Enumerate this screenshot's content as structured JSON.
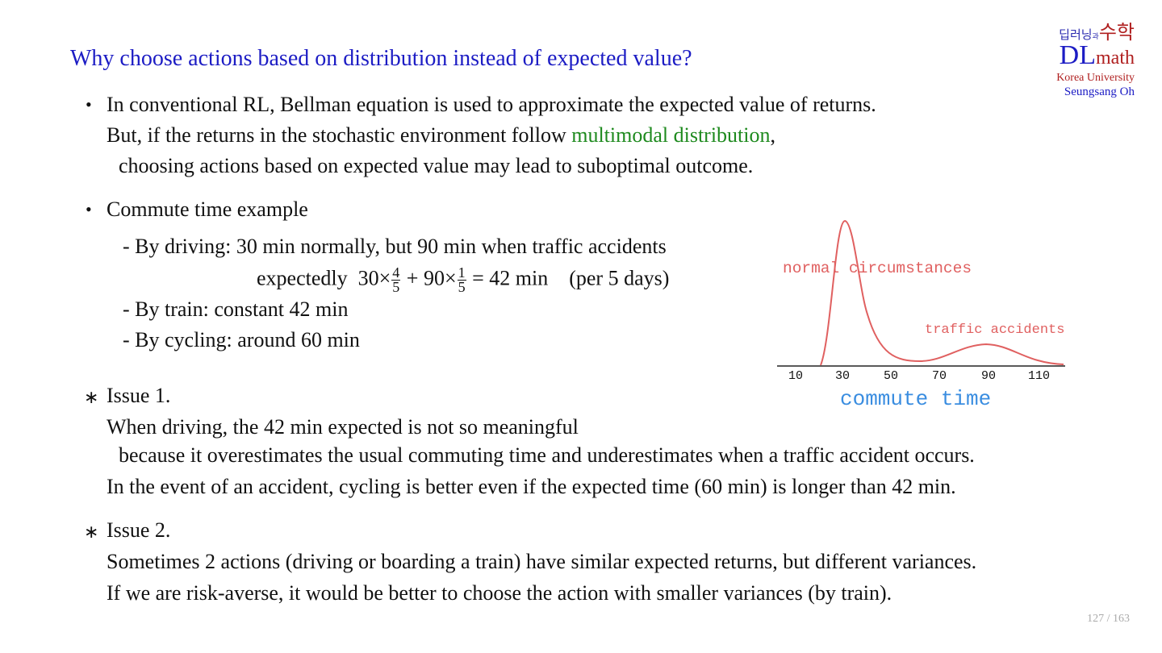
{
  "title": "Why choose actions based on distribution instead of expected value?",
  "logo": {
    "korean_top": "딥러닝",
    "korean_mid": "과",
    "korean_right": "수학",
    "dl": "DL",
    "math": "math",
    "university": "Korea University",
    "author": "Seungsang Oh"
  },
  "bullet1": {
    "line1": "In conventional RL, Bellman equation is used to approximate the expected value of returns.",
    "line2_pre": "But, if the returns in the stochastic environment follow ",
    "line2_highlight": "multimodal distribution",
    "line2_post": ",",
    "line3": "choosing actions based on expected value may lead to suboptimal outcome."
  },
  "bullet2": {
    "heading": "Commute time example",
    "driving": "-  By driving: 30 min normally, but 90 min when traffic accidents",
    "expect_word": "expectedly",
    "expect_a": "30×",
    "frac1_num": "4",
    "frac1_den": "5",
    "expect_b": "+ 90×",
    "frac2_num": "1",
    "frac2_den": "5",
    "expect_c": "= 42 min",
    "per": "(per 5 days)",
    "train": "-  By train: constant 42 min",
    "cycling": "-  By cycling: around 60 min"
  },
  "figure": {
    "label_normal": "normal circumstances",
    "label_accident": "traffic accidents",
    "xlabel": "commute time",
    "ticks": [
      "10",
      "30",
      "50",
      "70",
      "90",
      "110"
    ],
    "curve_color": "#e06060",
    "xlabel_color": "#3a8de0"
  },
  "issue1": {
    "heading": "Issue 1.",
    "line1": "When driving, the 42 min expected is not so meaningful",
    "line2": "because it overestimates the usual commuting time and underestimates when a traffic accident occurs.",
    "line3": "In the event of an accident, cycling is better even if the expected time (60 min) is longer than 42 min."
  },
  "issue2": {
    "heading": "Issue 2.",
    "line1": "Sometimes 2 actions (driving or boarding a train) have similar expected returns, but different variances.",
    "line2": "If we are risk-averse, it would be better to choose the action with smaller variances (by train)."
  },
  "page": "127 / 163",
  "bullet_symbol": "•",
  "star_symbol": "∗"
}
